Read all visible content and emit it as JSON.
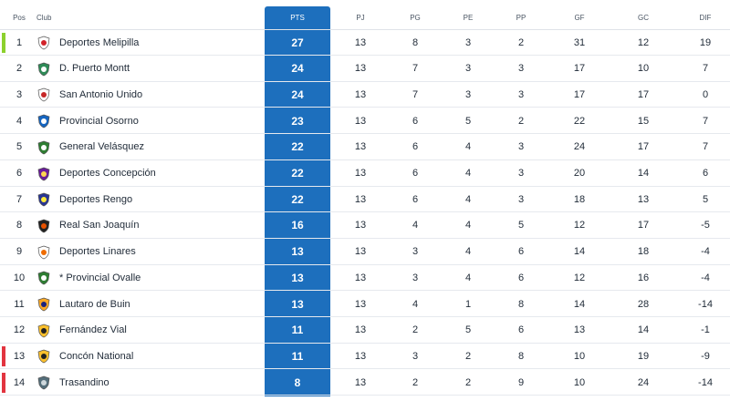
{
  "headers": {
    "pos": "Pos",
    "club": "Club",
    "pts": "PTS",
    "pj": "PJ",
    "pg": "PG",
    "pe": "PE",
    "pp": "PP",
    "gf": "GF",
    "gc": "GC",
    "dif": "DIF"
  },
  "colors": {
    "accent": "#1d6fbd",
    "promotion": "#8cd12d",
    "relegation": "#e2343f"
  },
  "rows": [
    {
      "pos": "1",
      "name": "Deportes Melipilla",
      "pts": "27",
      "pj": "13",
      "pg": "8",
      "pe": "3",
      "pp": "2",
      "gf": "31",
      "gc": "12",
      "dif": "19",
      "marker": "promotion",
      "crest": "melipilla-crest-icon"
    },
    {
      "pos": "2",
      "name": "D. Puerto Montt",
      "pts": "24",
      "pj": "13",
      "pg": "7",
      "pe": "3",
      "pp": "3",
      "gf": "17",
      "gc": "10",
      "dif": "7",
      "marker": "",
      "crest": "puerto-montt-crest-icon"
    },
    {
      "pos": "3",
      "name": "San Antonio Unido",
      "pts": "24",
      "pj": "13",
      "pg": "7",
      "pe": "3",
      "pp": "3",
      "gf": "17",
      "gc": "17",
      "dif": "0",
      "marker": "",
      "crest": "san-antonio-crest-icon"
    },
    {
      "pos": "4",
      "name": "Provincial Osorno",
      "pts": "23",
      "pj": "13",
      "pg": "6",
      "pe": "5",
      "pp": "2",
      "gf": "22",
      "gc": "15",
      "dif": "7",
      "marker": "",
      "crest": "osorno-crest-icon"
    },
    {
      "pos": "5",
      "name": "General Velásquez",
      "pts": "22",
      "pj": "13",
      "pg": "6",
      "pe": "4",
      "pp": "3",
      "gf": "24",
      "gc": "17",
      "dif": "7",
      "marker": "",
      "crest": "velasquez-crest-icon"
    },
    {
      "pos": "6",
      "name": "Deportes Concepción",
      "pts": "22",
      "pj": "13",
      "pg": "6",
      "pe": "4",
      "pp": "3",
      "gf": "20",
      "gc": "14",
      "dif": "6",
      "marker": "",
      "crest": "concepcion-crest-icon"
    },
    {
      "pos": "7",
      "name": "Deportes Rengo",
      "pts": "22",
      "pj": "13",
      "pg": "6",
      "pe": "4",
      "pp": "3",
      "gf": "18",
      "gc": "13",
      "dif": "5",
      "marker": "",
      "crest": "rengo-crest-icon"
    },
    {
      "pos": "8",
      "name": "Real San Joaquín",
      "pts": "16",
      "pj": "13",
      "pg": "4",
      "pe": "4",
      "pp": "5",
      "gf": "12",
      "gc": "17",
      "dif": "-5",
      "marker": "",
      "crest": "san-joaquin-crest-icon"
    },
    {
      "pos": "9",
      "name": "Deportes Linares",
      "pts": "13",
      "pj": "13",
      "pg": "3",
      "pe": "4",
      "pp": "6",
      "gf": "14",
      "gc": "18",
      "dif": "-4",
      "marker": "",
      "crest": "linares-crest-icon"
    },
    {
      "pos": "10",
      "name": "* Provincial Ovalle",
      "pts": "13",
      "pj": "13",
      "pg": "3",
      "pe": "4",
      "pp": "6",
      "gf": "12",
      "gc": "16",
      "dif": "-4",
      "marker": "",
      "crest": "ovalle-crest-icon"
    },
    {
      "pos": "11",
      "name": "Lautaro de Buin",
      "pts": "13",
      "pj": "13",
      "pg": "4",
      "pe": "1",
      "pp": "8",
      "gf": "14",
      "gc": "28",
      "dif": "-14",
      "marker": "",
      "crest": "buin-crest-icon"
    },
    {
      "pos": "12",
      "name": "Fernández Vial",
      "pts": "11",
      "pj": "13",
      "pg": "2",
      "pe": "5",
      "pp": "6",
      "gf": "13",
      "gc": "14",
      "dif": "-1",
      "marker": "",
      "crest": "fernandez-vial-crest-icon"
    },
    {
      "pos": "13",
      "name": "Concón National",
      "pts": "11",
      "pj": "13",
      "pg": "3",
      "pe": "2",
      "pp": "8",
      "gf": "10",
      "gc": "19",
      "dif": "-9",
      "marker": "relegation",
      "crest": "concon-crest-icon"
    },
    {
      "pos": "14",
      "name": "Trasandino",
      "pts": "8",
      "pj": "13",
      "pg": "2",
      "pe": "2",
      "pp": "9",
      "gf": "10",
      "gc": "24",
      "dif": "-14",
      "marker": "relegation",
      "crest": "trasandino-crest-icon"
    }
  ]
}
